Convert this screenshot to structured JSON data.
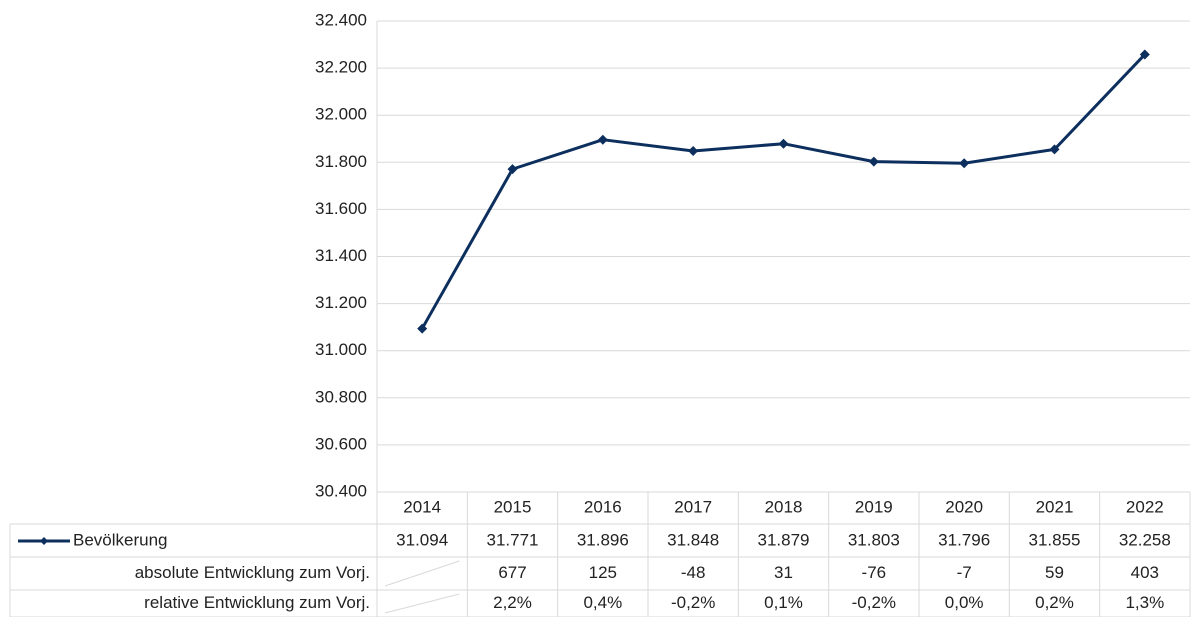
{
  "chart_data": {
    "type": "line",
    "categories": [
      "2014",
      "2015",
      "2016",
      "2017",
      "2018",
      "2019",
      "2020",
      "2021",
      "2022"
    ],
    "series": [
      {
        "name": "Bevölkerung",
        "color": "#0d2f5e",
        "values": [
          31094,
          31771,
          31896,
          31848,
          31879,
          31803,
          31796,
          31855,
          32258
        ],
        "value_labels": [
          "31.094",
          "31.771",
          "31.896",
          "31.848",
          "31.879",
          "31.803",
          "31.796",
          "31.855",
          "32.258"
        ]
      }
    ],
    "ylim": [
      30400,
      32400
    ],
    "yticks": [
      {
        "value": 30400,
        "label": "30.400"
      },
      {
        "value": 30600,
        "label": "30.600"
      },
      {
        "value": 30800,
        "label": "30.800"
      },
      {
        "value": 31000,
        "label": "31.000"
      },
      {
        "value": 31200,
        "label": "31.200"
      },
      {
        "value": 31400,
        "label": "31.400"
      },
      {
        "value": 31600,
        "label": "31.600"
      },
      {
        "value": 31800,
        "label": "31.800"
      },
      {
        "value": 32000,
        "label": "32.000"
      },
      {
        "value": 32200,
        "label": "32.200"
      },
      {
        "value": 32400,
        "label": "32.400"
      }
    ],
    "grid": true,
    "data_table": [
      {
        "label": "absolute Entwicklung zum Vorj.",
        "values": [
          null,
          677,
          125,
          -48,
          31,
          -76,
          -7,
          59,
          403
        ]
      },
      {
        "label": "relative Entwicklung zum Vorj.",
        "values": [
          null,
          2.2,
          0.4,
          -0.2,
          0.1,
          -0.2,
          0.0,
          0.2,
          1.3
        ],
        "value_labels": [
          null,
          "2,2%",
          "0,4%",
          "-0,2%",
          "0,1%",
          "-0,2%",
          "0,0%",
          "0,2%",
          "1,3%"
        ]
      }
    ]
  }
}
